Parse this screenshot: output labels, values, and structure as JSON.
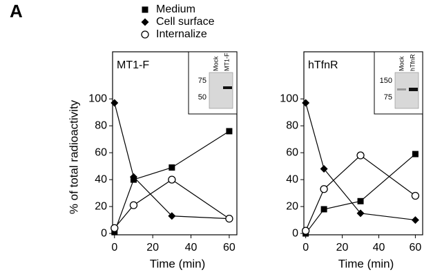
{
  "panel_label": "A",
  "chart_data": [
    {
      "type": "line",
      "title": "MT1-F",
      "x_label": "Time (min)",
      "y_label": "% of total radioactivity",
      "x": [
        0,
        10,
        30,
        60
      ],
      "xlim": [
        -1,
        64
      ],
      "ylim": [
        -1,
        135
      ],
      "xticks": [
        0,
        20,
        40,
        60
      ],
      "yticks": [
        0,
        20,
        40,
        60,
        80,
        100
      ],
      "series": [
        {
          "name": "Medium",
          "marker": "square",
          "color": "#000000",
          "values": [
            1,
            40,
            49,
            76
          ]
        },
        {
          "name": "Cell surface",
          "marker": "diamond",
          "color": "#000000",
          "values": [
            97,
            42,
            13,
            11
          ]
        },
        {
          "name": "Internalize",
          "marker": "circle",
          "color": "#000000",
          "values": [
            4,
            21,
            40,
            11
          ]
        }
      ],
      "inset": {
        "marker_labels": [
          "75",
          "50"
        ],
        "lane_labels": [
          "Mock",
          "MT1-F"
        ]
      }
    },
    {
      "type": "line",
      "title": "hTfnR",
      "x_label": "Time (min)",
      "x": [
        0,
        10,
        30,
        60
      ],
      "xlim": [
        -1,
        64
      ],
      "ylim": [
        -1,
        135
      ],
      "xticks": [
        0,
        20,
        40,
        60
      ],
      "yticks": [
        0,
        20,
        40,
        60,
        80,
        100
      ],
      "series": [
        {
          "marker": "square",
          "color": "#000000",
          "values": [
            0,
            18,
            24,
            59
          ]
        },
        {
          "marker": "diamond",
          "color": "#000000",
          "values": [
            97,
            48,
            15,
            10
          ]
        },
        {
          "marker": "circle",
          "color": "#000000",
          "values": [
            2,
            33,
            58,
            28
          ]
        }
      ],
      "inset": {
        "marker_labels": [
          "150",
          "75"
        ],
        "lane_labels": [
          "Mock",
          "hTfnR"
        ]
      }
    }
  ]
}
